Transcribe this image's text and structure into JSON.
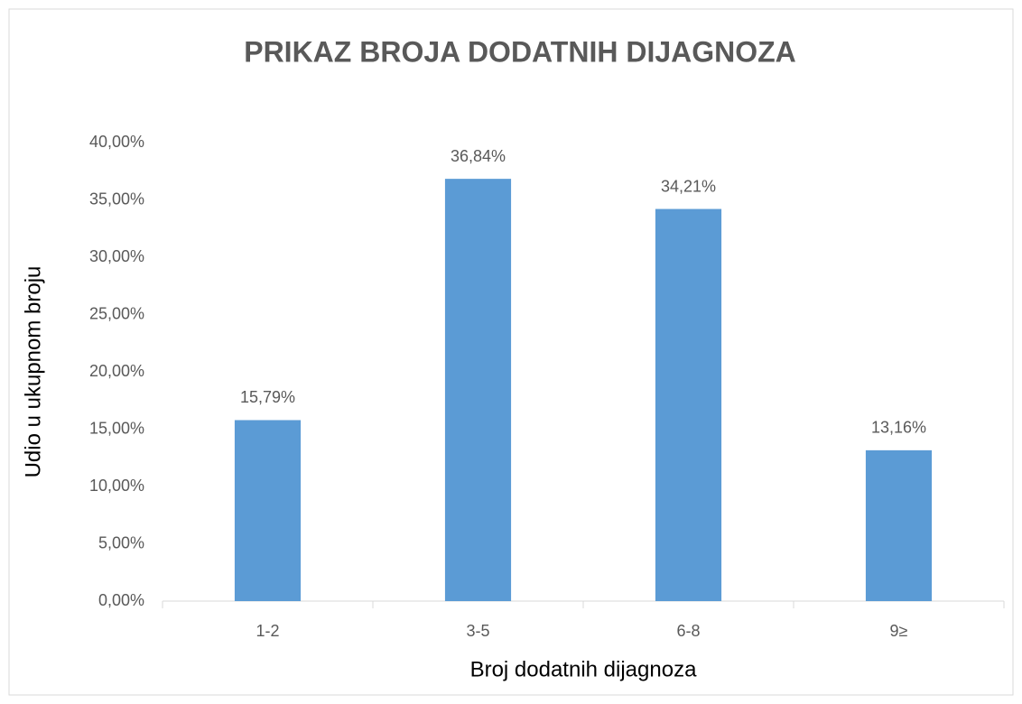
{
  "chart_data": {
    "type": "bar",
    "title": "PRIKAZ BROJA DODATNIH DIJAGNOZA",
    "x_label": "Broj dodatnih dijagnoza",
    "y_label": "Udio u ukupnom broju",
    "categories": [
      "1-2",
      "3-5",
      "6-8",
      "9≥"
    ],
    "values": [
      15.79,
      36.84,
      34.21,
      13.16
    ],
    "value_labels": [
      "15,79%",
      "36,84%",
      "34,21%",
      "13,16%"
    ],
    "color": "#5b9bd5",
    "ylim": [
      0,
      40
    ],
    "yticks": [
      {
        "value": 0,
        "label": "0,00%"
      },
      {
        "value": 5,
        "label": "5,00%"
      },
      {
        "value": 10,
        "label": "10,00%"
      },
      {
        "value": 15,
        "label": "15,00%"
      },
      {
        "value": 20,
        "label": "20,00%"
      },
      {
        "value": 25,
        "label": "25,00%"
      },
      {
        "value": 30,
        "label": "30,00%"
      },
      {
        "value": 35,
        "label": "35,00%"
      },
      {
        "value": 40,
        "label": "40,00%"
      }
    ],
    "grid": false
  }
}
